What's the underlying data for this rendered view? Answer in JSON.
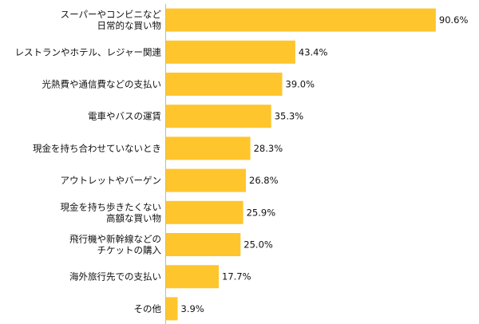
{
  "chart_data": {
    "type": "bar",
    "orientation": "horizontal",
    "categories": [
      [
        "スーパーやコンビニなど",
        "日常的な買い物"
      ],
      [
        "レストランやホテル、レジャー関連"
      ],
      [
        "光熱費や通信費などの支払い"
      ],
      [
        "電車やバスの運賃"
      ],
      [
        "現金を持ち合わせていないとき"
      ],
      [
        "アウトレットやバーゲン"
      ],
      [
        "現金を持ち歩きたくない",
        "高額な買い物"
      ],
      [
        "飛行機や新幹線などの",
        "チケットの購入"
      ],
      [
        "海外旅行先での支払い"
      ],
      [
        "その他"
      ]
    ],
    "values": [
      90.6,
      43.4,
      39.0,
      35.3,
      28.3,
      26.8,
      25.9,
      25.0,
      17.7,
      3.9
    ],
    "value_labels": [
      "90.6%",
      "43.4%",
      "39.0%",
      "35.3%",
      "28.3%",
      "26.8%",
      "25.9%",
      "25.0%",
      "17.7%",
      "3.9%"
    ],
    "xlim": [
      0,
      100
    ],
    "bar_color": "#FFC52C",
    "axis_color": "#BBBBBB"
  }
}
